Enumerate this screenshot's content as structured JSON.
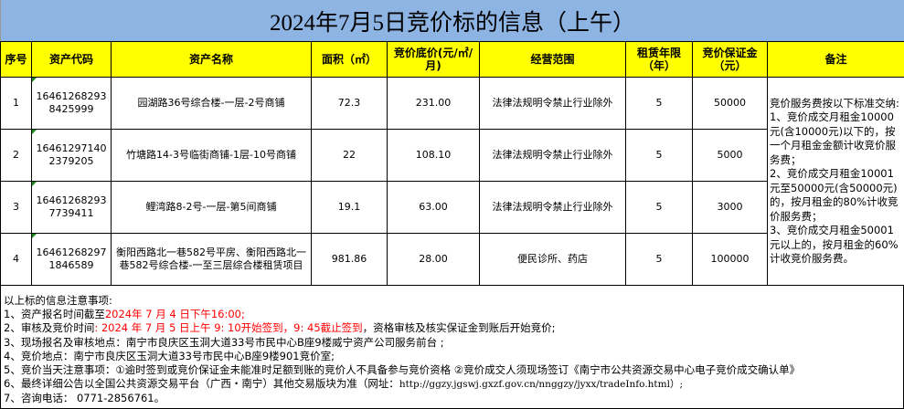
{
  "title": "2024年7月5日竞价标的信息（上午）",
  "headers": [
    "序号",
    "资产代码",
    "资产名称",
    "面积（㎡）",
    "竞价底价(元/㎡/月)",
    "经营范围",
    "租赁年限（年）",
    "竞价保证金（元）",
    "备注"
  ],
  "rows": [
    {
      "no": "1",
      "code": "164612682938425999",
      "name": "园湖路36号综合楼-一层-2号商铺",
      "area": "72.3",
      "price": "231.00",
      "scope": "法律法规明令禁止行业除外",
      "years": "5",
      "deposit": "50000"
    },
    {
      "no": "2",
      "code": "164612971402379205",
      "name": "竹塘路14-3号临街商铺-1层-10号商铺",
      "area": "22",
      "price": "108.10",
      "scope": "法律法规明令禁止行业除外",
      "years": "5",
      "deposit": "5000"
    },
    {
      "no": "3",
      "code": "164612682937739411",
      "name": "鲤湾路8-2号-一层-第5间商铺",
      "area": "19.1",
      "price": "63.00",
      "scope": "法律法规明令禁止行业除外",
      "years": "5",
      "deposit": "3000"
    },
    {
      "no": "4",
      "code": "164612682971846589",
      "name": "衡阳西路北一巷582号平房、衡阳西路北一巷582号综合楼-一至三层综合楼租赁项目",
      "area": "981.86",
      "price": "28.00",
      "scope": "便民诊所、药店",
      "years": "5",
      "deposit": "100000"
    }
  ],
  "remark": "竞价服务费按以下标准交纳:\n1、竞价成交月租金10000元(含10000元)以下的，按一个月租金金额计收竞价服务费；\n2、竞价成交月租金10001元至50000元(含50000元)的，按月租金的80%计收竞价服务费；\n3、竞价成交月租金50001元以上的，按月租金的60%计收竞价服务费。",
  "notes": {
    "heading": "以上标的信息注意事项:",
    "n1_label": "1、资产报名时间截至",
    "n1_value": "2024年 7 月 4 日下午16:00;",
    "n2_label": "2、审核及竞价时间",
    "n2_value": ": 2024 年 7 月 5 日上午 9: 10开始签到，9: 45截止签到",
    "n2_rest": "，资格审核及核实保证金到账后开始竞价;",
    "n3": "3、现场报名及审核地点：南宁市良庆区玉洞大道33号市民中心B座9楼威宁资产公司服务前台 ;",
    "n4": "4、竞价地点：南宁市良庆区玉洞大道33号市民中心B座9楼901竞价室;",
    "n5": "5、竞价当天注意事项：①逾时签到或竞价保证金未能准时足额到账的竞价人不具备参与竞价资格 ②竞价成交人须现场签订《南宁市公共资源交易中心电子竞价成交确认单》",
    "n6_label": "6、最终详细公告以全国公共资源交易平台（广西・南宁）其他交易版块为准（网址：",
    "n6_url": "http://ggzy.jgswj.gxzf.gov.cn/nnggzy/jyxx/tradeInfo.html）;",
    "n7": "7、咨询电话： 0771-2856761。"
  },
  "colors": {
    "title_bg": "#8db4e2",
    "header_bg": "#ffff00",
    "highlight": "#ff0000"
  }
}
